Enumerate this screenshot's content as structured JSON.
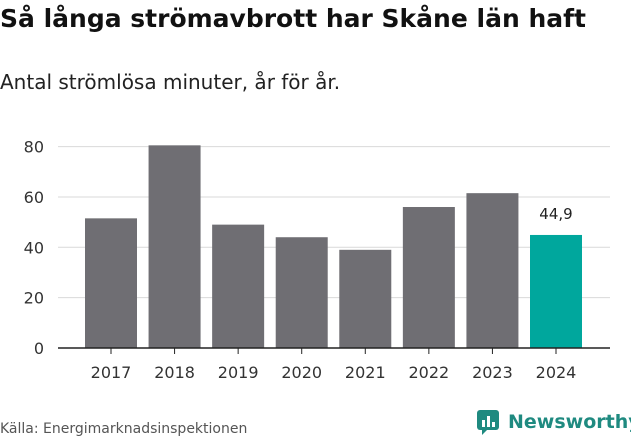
{
  "header": {
    "title": "Så långa strömavbrott har Skåne län haft",
    "subtitle": "Antal strömlösa minuter, år för år."
  },
  "footer": {
    "source": "Källa: Energimarknadsinspektionen",
    "brand": "Newsworthy",
    "brand_icon": "newsworthy-logo-icon"
  },
  "colors": {
    "bar": "#6f6e73",
    "highlight": "#00a79d",
    "grid": "#d9d9d9",
    "axis": "#222222",
    "brand": "#1f8a80"
  },
  "chart_data": {
    "type": "bar",
    "categories": [
      "2017",
      "2018",
      "2019",
      "2020",
      "2021",
      "2022",
      "2023",
      "2024"
    ],
    "values": [
      51.5,
      80.5,
      49,
      44,
      39,
      56,
      61.5,
      44.9
    ],
    "highlight_index": 7,
    "data_labels": [
      null,
      null,
      null,
      null,
      null,
      null,
      null,
      "44,9"
    ],
    "yticks": [
      0,
      20,
      40,
      60,
      80
    ],
    "ylim": [
      0,
      85
    ],
    "title": "Så långa strömavbrott har Skåne län haft",
    "subtitle": "Antal strömlösa minuter, år för år.",
    "xlabel": "",
    "ylabel": "",
    "grid": true,
    "legend": "none"
  }
}
